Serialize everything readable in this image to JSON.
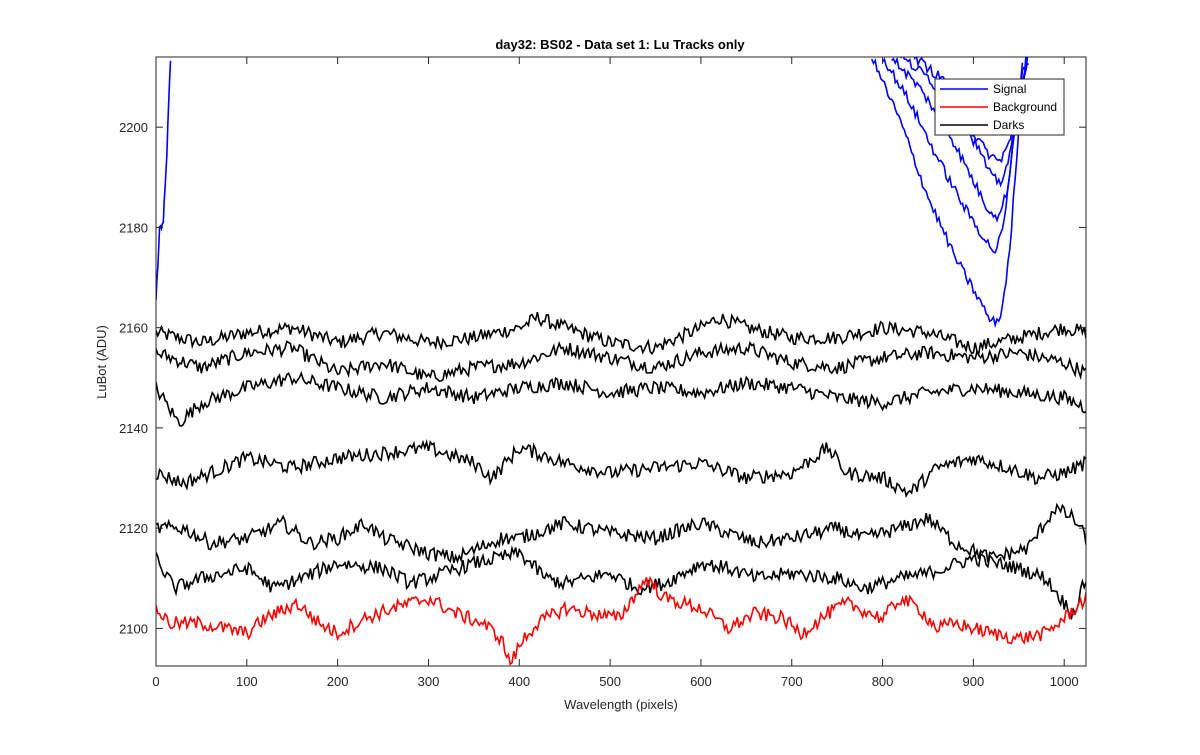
{
  "chart_data": {
    "type": "line",
    "title": "day32: BS02 - Data set 1: Lu Tracks only",
    "xlabel": "Wavelength (pixels)",
    "ylabel": "LuBot (ADU)",
    "xlim": [
      0,
      1024
    ],
    "ylim": [
      2092.5,
      2214
    ],
    "xticks": [
      0,
      100,
      200,
      300,
      400,
      500,
      600,
      700,
      800,
      900,
      1000
    ],
    "yticks": [
      2100,
      2120,
      2140,
      2160,
      2180,
      2200
    ],
    "xtick_labels": [
      "0",
      "100",
      "200",
      "300",
      "400",
      "500",
      "600",
      "700",
      "800",
      "900",
      "1000"
    ],
    "ytick_labels": [
      "2100",
      "2120",
      "2140",
      "2160",
      "2180",
      "2200"
    ],
    "grid": false,
    "legend_position": "top-right",
    "legend": [
      {
        "label": "Signal",
        "color": "#0000ff"
      },
      {
        "label": "Background",
        "color": "#ff0000"
      },
      {
        "label": "Darks",
        "color": "#000000"
      }
    ],
    "series_groups": {
      "signal": {
        "color": "#0000ff",
        "left_branch": [
          [
            0,
            2165
          ],
          [
            4,
            2180
          ],
          [
            8,
            2181
          ],
          [
            12,
            2195
          ],
          [
            16,
            2214
          ]
        ],
        "right_branches": [
          [
            [
              788,
              2214
            ],
            [
              820,
              2201
            ],
            [
              850,
              2186
            ],
            [
              880,
              2174
            ],
            [
              905,
              2166
            ],
            [
              920,
              2161
            ],
            [
              930,
              2162
            ],
            [
              940,
              2175
            ],
            [
              948,
              2195
            ],
            [
              958,
              2214
            ]
          ],
          [
            [
              800,
              2214
            ],
            [
              830,
              2205
            ],
            [
              860,
              2194
            ],
            [
              890,
              2184
            ],
            [
              915,
              2177
            ],
            [
              925,
              2175
            ],
            [
              935,
              2182
            ],
            [
              945,
              2200
            ],
            [
              955,
              2214
            ]
          ],
          [
            [
              810,
              2214
            ],
            [
              840,
              2208
            ],
            [
              870,
              2200
            ],
            [
              895,
              2191
            ],
            [
              915,
              2184
            ],
            [
              928,
              2182
            ],
            [
              938,
              2188
            ],
            [
              948,
              2203
            ],
            [
              957,
              2214
            ]
          ],
          [
            [
              820,
              2214
            ],
            [
              850,
              2210
            ],
            [
              880,
              2203
            ],
            [
              905,
              2196
            ],
            [
              920,
              2190
            ],
            [
              930,
              2189
            ],
            [
              940,
              2194
            ],
            [
              950,
              2206
            ],
            [
              960,
              2214
            ]
          ],
          [
            [
              835,
              2214
            ],
            [
              870,
              2209
            ],
            [
              895,
              2200
            ],
            [
              915,
              2195
            ],
            [
              928,
              2193
            ],
            [
              940,
              2197
            ],
            [
              950,
              2207
            ],
            [
              962,
              2214
            ]
          ]
        ]
      },
      "background": {
        "color": "#ff0000",
        "points": [
          [
            0,
            2104
          ],
          [
            15,
            2101
          ],
          [
            50,
            2101
          ],
          [
            100,
            2099
          ],
          [
            120,
            2102
          ],
          [
            155,
            2105
          ],
          [
            180,
            2101
          ],
          [
            200,
            2099
          ],
          [
            230,
            2102
          ],
          [
            260,
            2104
          ],
          [
            300,
            2106
          ],
          [
            330,
            2103
          ],
          [
            360,
            2101
          ],
          [
            380,
            2098
          ],
          [
            390,
            2093
          ],
          [
            405,
            2098
          ],
          [
            420,
            2101
          ],
          [
            450,
            2104
          ],
          [
            480,
            2103
          ],
          [
            510,
            2102
          ],
          [
            540,
            2110
          ],
          [
            560,
            2106
          ],
          [
            600,
            2104
          ],
          [
            630,
            2100
          ],
          [
            660,
            2103
          ],
          [
            690,
            2102
          ],
          [
            710,
            2099
          ],
          [
            740,
            2103
          ],
          [
            760,
            2105
          ],
          [
            800,
            2102
          ],
          [
            820,
            2106
          ],
          [
            840,
            2104
          ],
          [
            860,
            2100
          ],
          [
            880,
            2101
          ],
          [
            920,
            2099
          ],
          [
            950,
            2098
          ],
          [
            980,
            2099
          ],
          [
            1000,
            2102
          ],
          [
            1024,
            2106
          ]
        ]
      },
      "darks": {
        "color": "#000000",
        "curves": [
          [
            [
              0,
              2159
            ],
            [
              50,
              2157
            ],
            [
              100,
              2159
            ],
            [
              150,
              2160
            ],
            [
              200,
              2157
            ],
            [
              250,
              2159
            ],
            [
              300,
              2157
            ],
            [
              350,
              2158
            ],
            [
              400,
              2160
            ],
            [
              420,
              2162
            ],
            [
              450,
              2160
            ],
            [
              500,
              2157
            ],
            [
              550,
              2156
            ],
            [
              600,
              2160
            ],
            [
              620,
              2162
            ],
            [
              650,
              2160
            ],
            [
              700,
              2158
            ],
            [
              750,
              2158
            ],
            [
              800,
              2160
            ],
            [
              850,
              2159
            ],
            [
              900,
              2156
            ],
            [
              950,
              2158
            ],
            [
              1000,
              2160
            ],
            [
              1024,
              2159
            ]
          ],
          [
            [
              0,
              2155
            ],
            [
              50,
              2152
            ],
            [
              100,
              2155
            ],
            [
              150,
              2156
            ],
            [
              200,
              2151
            ],
            [
              250,
              2153
            ],
            [
              300,
              2150
            ],
            [
              350,
              2152
            ],
            [
              400,
              2153
            ],
            [
              450,
              2156
            ],
            [
              500,
              2154
            ],
            [
              550,
              2152
            ],
            [
              600,
              2155
            ],
            [
              650,
              2156
            ],
            [
              700,
              2153
            ],
            [
              750,
              2152
            ],
            [
              800,
              2154
            ],
            [
              850,
              2155
            ],
            [
              900,
              2154
            ],
            [
              950,
              2155
            ],
            [
              1000,
              2153
            ],
            [
              1024,
              2151
            ]
          ],
          [
            [
              0,
              2148
            ],
            [
              25,
              2141
            ],
            [
              50,
              2145
            ],
            [
              100,
              2148
            ],
            [
              150,
              2150
            ],
            [
              200,
              2148
            ],
            [
              250,
              2146
            ],
            [
              300,
              2148
            ],
            [
              350,
              2146
            ],
            [
              400,
              2148
            ],
            [
              450,
              2149
            ],
            [
              500,
              2147
            ],
            [
              550,
              2148
            ],
            [
              600,
              2147
            ],
            [
              650,
              2149
            ],
            [
              700,
              2148
            ],
            [
              750,
              2146
            ],
            [
              800,
              2145
            ],
            [
              850,
              2147
            ],
            [
              900,
              2148
            ],
            [
              950,
              2147
            ],
            [
              1000,
              2146
            ],
            [
              1024,
              2144
            ]
          ],
          [
            [
              0,
              2131
            ],
            [
              30,
              2129
            ],
            [
              60,
              2131
            ],
            [
              100,
              2134
            ],
            [
              150,
              2132
            ],
            [
              200,
              2134
            ],
            [
              250,
              2135
            ],
            [
              300,
              2136
            ],
            [
              350,
              2133
            ],
            [
              370,
              2130
            ],
            [
              400,
              2136
            ],
            [
              420,
              2135
            ],
            [
              450,
              2133
            ],
            [
              500,
              2131
            ],
            [
              550,
              2132
            ],
            [
              600,
              2133
            ],
            [
              650,
              2130
            ],
            [
              700,
              2131
            ],
            [
              740,
              2136
            ],
            [
              760,
              2131
            ],
            [
              800,
              2130
            ],
            [
              830,
              2127
            ],
            [
              860,
              2132
            ],
            [
              900,
              2134
            ],
            [
              940,
              2132
            ],
            [
              970,
              2130
            ],
            [
              1000,
              2131
            ],
            [
              1024,
              2133
            ]
          ],
          [
            [
              0,
              2120
            ],
            [
              30,
              2120
            ],
            [
              60,
              2117
            ],
            [
              100,
              2118
            ],
            [
              140,
              2121
            ],
            [
              170,
              2117
            ],
            [
              200,
              2118
            ],
            [
              230,
              2121
            ],
            [
              250,
              2118
            ],
            [
              300,
              2115
            ],
            [
              330,
              2114
            ],
            [
              380,
              2118
            ],
            [
              400,
              2118
            ],
            [
              450,
              2121
            ],
            [
              500,
              2119
            ],
            [
              550,
              2118
            ],
            [
              600,
              2121
            ],
            [
              630,
              2119
            ],
            [
              660,
              2117
            ],
            [
              700,
              2118
            ],
            [
              750,
              2120
            ],
            [
              780,
              2118
            ],
            [
              820,
              2120
            ],
            [
              850,
              2122
            ],
            [
              880,
              2117
            ],
            [
              920,
              2114
            ],
            [
              960,
              2116
            ],
            [
              990,
              2124
            ],
            [
              1010,
              2122
            ],
            [
              1024,
              2118
            ]
          ],
          [
            [
              0,
              2114
            ],
            [
              20,
              2108
            ],
            [
              50,
              2110
            ],
            [
              100,
              2112
            ],
            [
              130,
              2108
            ],
            [
              160,
              2110
            ],
            [
              200,
              2113
            ],
            [
              250,
              2112
            ],
            [
              280,
              2109
            ],
            [
              300,
              2110
            ],
            [
              350,
              2113
            ],
            [
              400,
              2115
            ],
            [
              430,
              2110
            ],
            [
              450,
              2109
            ],
            [
              500,
              2111
            ],
            [
              530,
              2108
            ],
            [
              560,
              2109
            ],
            [
              600,
              2113
            ],
            [
              630,
              2112
            ],
            [
              660,
              2110
            ],
            [
              700,
              2111
            ],
            [
              750,
              2110
            ],
            [
              780,
              2108
            ],
            [
              820,
              2110
            ],
            [
              850,
              2111
            ],
            [
              900,
              2114
            ],
            [
              950,
              2112
            ],
            [
              980,
              2110
            ],
            [
              1000,
              2105
            ],
            [
              1010,
              2103
            ],
            [
              1024,
              2110
            ]
          ]
        ]
      }
    }
  }
}
